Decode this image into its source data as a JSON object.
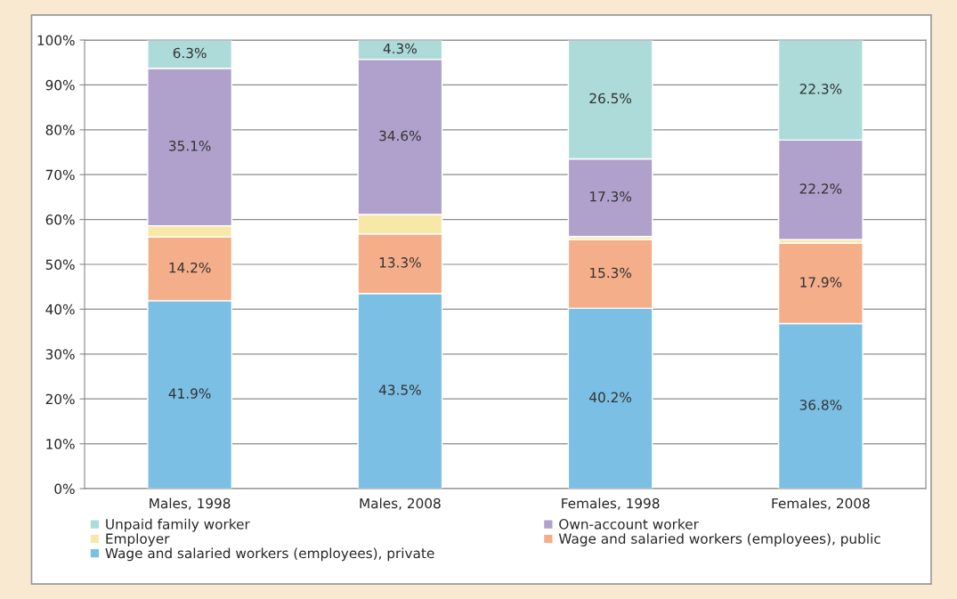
{
  "chart_data": {
    "type": "bar",
    "stacked": true,
    "categories": [
      "Males, 1998",
      "Males, 2008",
      "Females, 1998",
      "Females, 2008"
    ],
    "series": [
      {
        "name": "Wage and salaried workers (employees), private",
        "color": "#7bbfe4",
        "values": [
          41.9,
          43.5,
          40.2,
          36.8
        ],
        "value_labels": [
          "41.9%",
          "43.5%",
          "40.2%",
          "36.8%"
        ]
      },
      {
        "name": "Wage and salaried workers (employees), public",
        "color": "#f4ae8a",
        "values": [
          14.2,
          13.3,
          15.3,
          17.9
        ],
        "value_labels": [
          "14.2%",
          "13.3%",
          "15.3%",
          "17.9%"
        ]
      },
      {
        "name": "Employer",
        "color": "#f8e8a8",
        "values": [
          2.5,
          4.3,
          0.7,
          0.8
        ],
        "value_labels": [
          null,
          null,
          null,
          null
        ]
      },
      {
        "name": "Own-account worker",
        "color": "#b0a1cc",
        "values": [
          35.1,
          34.6,
          17.3,
          22.2
        ],
        "value_labels": [
          "35.1%",
          "34.6%",
          "17.3%",
          "22.2%"
        ]
      },
      {
        "name": "Unpaid family worker",
        "color": "#acdbd9",
        "values": [
          6.3,
          4.3,
          26.5,
          22.3
        ],
        "value_labels": [
          "6.3%",
          "4.3%",
          "26.5%",
          "22.3%"
        ]
      }
    ],
    "ylim": [
      0,
      100
    ],
    "yticks": [
      {
        "value": 0,
        "label": "0%"
      },
      {
        "value": 10,
        "label": "10%"
      },
      {
        "value": 20,
        "label": "20%"
      },
      {
        "value": 30,
        "label": "30%"
      },
      {
        "value": 40,
        "label": "40%"
      },
      {
        "value": 50,
        "label": "50%"
      },
      {
        "value": 60,
        "label": "60%"
      },
      {
        "value": 70,
        "label": "70%"
      },
      {
        "value": 80,
        "label": "80%"
      },
      {
        "value": 90,
        "label": "90%"
      },
      {
        "value": 100,
        "label": "100%"
      }
    ],
    "grid": "y",
    "legend": "bottom"
  }
}
